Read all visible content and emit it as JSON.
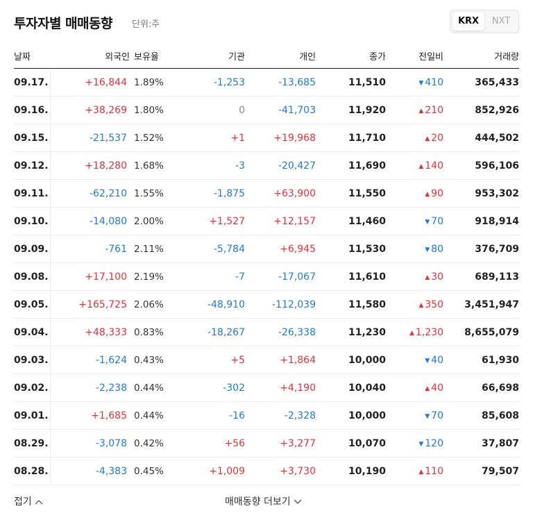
{
  "header": {
    "title": "투자자별 매매동향",
    "unit": "단위:주",
    "tabs": [
      "KRX",
      "NXT"
    ]
  },
  "columns": {
    "date": "날짜",
    "foreign": "외국인",
    "ratio": "보유율",
    "institution": "기관",
    "individual": "개인",
    "close": "종가",
    "change": "전일비",
    "volume": "거래량"
  },
  "rows": [
    {
      "date": "09.17.",
      "foreign": "+16,844",
      "ratio": "1.89%",
      "institution": "-1,253",
      "individual": "-13,685",
      "close": "11,510",
      "change": "410",
      "change_dir": "down",
      "volume": "365,433"
    },
    {
      "date": "09.16.",
      "foreign": "+38,269",
      "ratio": "1.80%",
      "institution": "0",
      "individual": "-41,703",
      "close": "11,920",
      "change": "210",
      "change_dir": "up",
      "volume": "852,926"
    },
    {
      "date": "09.15.",
      "foreign": "-21,537",
      "ratio": "1.52%",
      "institution": "+1",
      "individual": "+19,968",
      "close": "11,710",
      "change": "20",
      "change_dir": "up",
      "volume": "444,502"
    },
    {
      "date": "09.12.",
      "foreign": "+18,280",
      "ratio": "1.68%",
      "institution": "-3",
      "individual": "-20,427",
      "close": "11,690",
      "change": "140",
      "change_dir": "up",
      "volume": "596,106"
    },
    {
      "date": "09.11.",
      "foreign": "-62,210",
      "ratio": "1.55%",
      "institution": "-1,875",
      "individual": "+63,900",
      "close": "11,550",
      "change": "90",
      "change_dir": "up",
      "volume": "953,302"
    },
    {
      "date": "09.10.",
      "foreign": "-14,080",
      "ratio": "2.00%",
      "institution": "+1,527",
      "individual": "+12,157",
      "close": "11,460",
      "change": "70",
      "change_dir": "down",
      "volume": "918,914"
    },
    {
      "date": "09.09.",
      "foreign": "-761",
      "ratio": "2.11%",
      "institution": "-5,784",
      "individual": "+6,945",
      "close": "11,530",
      "change": "80",
      "change_dir": "down",
      "volume": "376,709"
    },
    {
      "date": "09.08.",
      "foreign": "+17,100",
      "ratio": "2.19%",
      "institution": "-7",
      "individual": "-17,067",
      "close": "11,610",
      "change": "30",
      "change_dir": "up",
      "volume": "689,113"
    },
    {
      "date": "09.05.",
      "foreign": "+165,725",
      "ratio": "2.06%",
      "institution": "-48,910",
      "individual": "-112,039",
      "close": "11,580",
      "change": "350",
      "change_dir": "up",
      "volume": "3,451,947"
    },
    {
      "date": "09.04.",
      "foreign": "+48,333",
      "ratio": "0.83%",
      "institution": "-18,267",
      "individual": "-26,338",
      "close": "11,230",
      "change": "1,230",
      "change_dir": "up",
      "volume": "8,655,079"
    },
    {
      "date": "09.03.",
      "foreign": "-1,624",
      "ratio": "0.43%",
      "institution": "+5",
      "individual": "+1,864",
      "close": "10,000",
      "change": "40",
      "change_dir": "down",
      "volume": "61,930"
    },
    {
      "date": "09.02.",
      "foreign": "-2,238",
      "ratio": "0.44%",
      "institution": "-302",
      "individual": "+4,190",
      "close": "10,040",
      "change": "40",
      "change_dir": "up",
      "volume": "66,698"
    },
    {
      "date": "09.01.",
      "foreign": "+1,685",
      "ratio": "0.44%",
      "institution": "-16",
      "individual": "-2,328",
      "close": "10,000",
      "change": "70",
      "change_dir": "down",
      "volume": "85,608"
    },
    {
      "date": "08.29.",
      "foreign": "-3,078",
      "ratio": "0.42%",
      "institution": "+56",
      "individual": "+3,277",
      "close": "10,070",
      "change": "120",
      "change_dir": "down",
      "volume": "37,807"
    },
    {
      "date": "08.28.",
      "foreign": "-4,383",
      "ratio": "0.45%",
      "institution": "+1,009",
      "individual": "+3,730",
      "close": "10,190",
      "change": "110",
      "change_dir": "up",
      "volume": "79,507"
    }
  ],
  "colors": {
    "up": "#e8303a",
    "down": "#1f7bd9",
    "zero": "#888888"
  },
  "footer": {
    "fold_label": "접기",
    "more_label": "매매동향 더보기"
  }
}
